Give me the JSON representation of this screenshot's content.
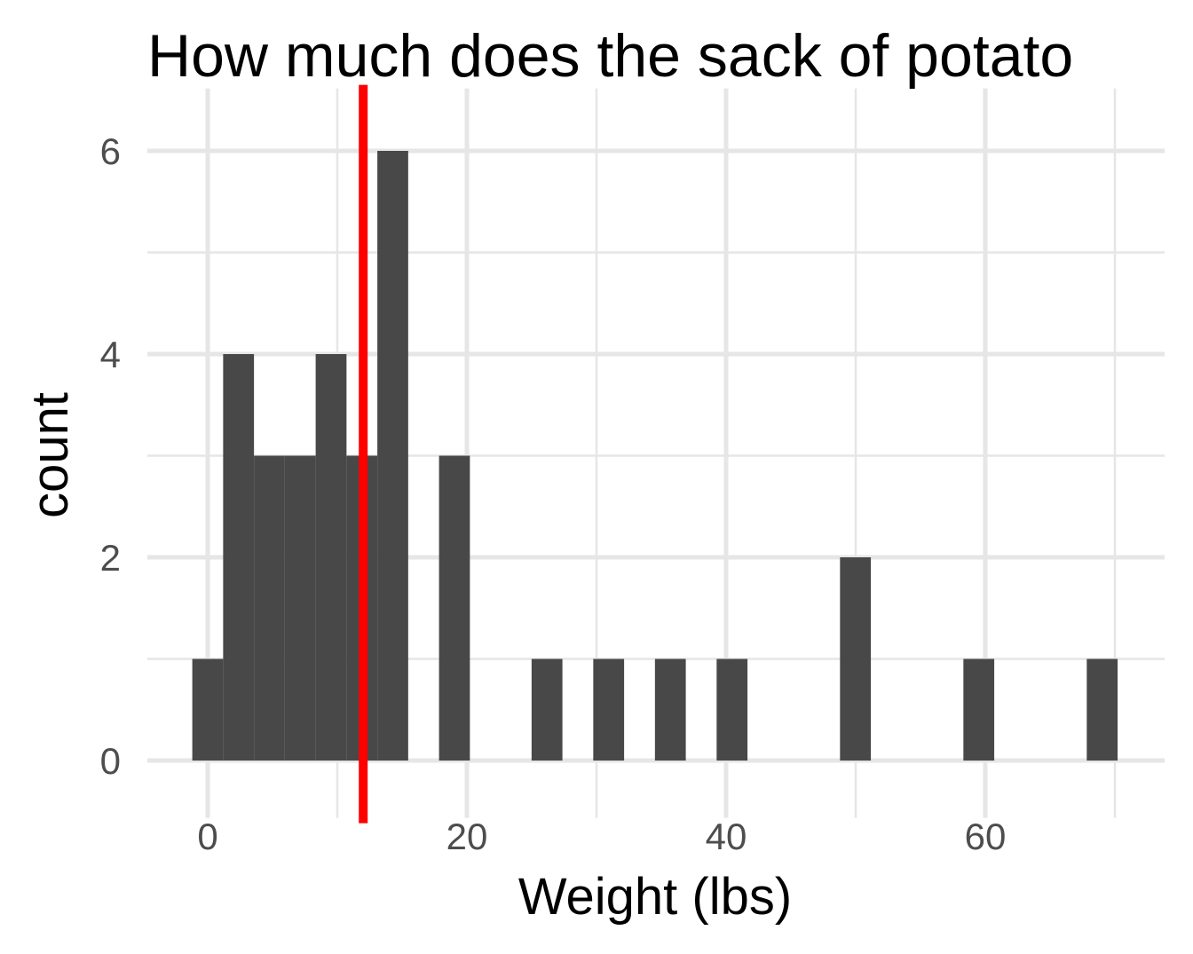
{
  "chart_data": {
    "type": "bar",
    "title": "How much does the sack of potato",
    "xlabel": "Weight (lbs)",
    "ylabel": "count",
    "xlim": [
      -5,
      72
    ],
    "ylim": [
      0,
      6.3
    ],
    "x_ticks": [
      0,
      20,
      40,
      60
    ],
    "y_ticks": [
      0,
      2,
      4,
      6
    ],
    "x_tick_labels": [
      "0",
      "20",
      "40",
      "60"
    ],
    "y_tick_labels": [
      "0",
      "2",
      "4",
      "6"
    ],
    "grid": true,
    "bin_width": 2.38,
    "bins": [
      {
        "x": 0.0,
        "count": 1
      },
      {
        "x": 2.38,
        "count": 4
      },
      {
        "x": 4.76,
        "count": 3
      },
      {
        "x": 7.14,
        "count": 3
      },
      {
        "x": 9.52,
        "count": 4
      },
      {
        "x": 11.9,
        "count": 3
      },
      {
        "x": 14.28,
        "count": 6
      },
      {
        "x": 19.04,
        "count": 3
      },
      {
        "x": 26.18,
        "count": 1
      },
      {
        "x": 30.94,
        "count": 1
      },
      {
        "x": 35.7,
        "count": 1
      },
      {
        "x": 40.46,
        "count": 1
      },
      {
        "x": 49.98,
        "count": 2
      },
      {
        "x": 59.5,
        "count": 1
      },
      {
        "x": 69.02,
        "count": 1
      }
    ],
    "reference_line": {
      "x": 12,
      "color": "#ff0000"
    },
    "bar_color": "#484848",
    "grid_color": "#e6e6e6"
  }
}
